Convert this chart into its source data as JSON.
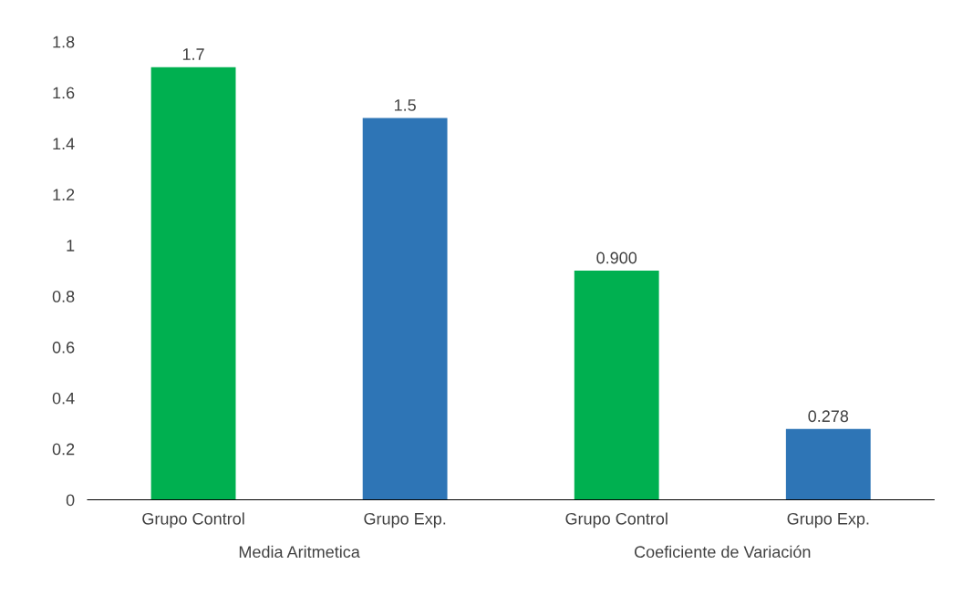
{
  "chart_data": {
    "type": "bar",
    "categories": [
      "Grupo Control",
      "Grupo Exp.",
      "Grupo Control",
      "Grupo Exp."
    ],
    "values": [
      1.7,
      1.5,
      0.9,
      0.278
    ],
    "colors": [
      "#00b050",
      "#2e75b6",
      "#00b050",
      "#2e75b6"
    ],
    "value_labels": [
      "1.7",
      "1.5",
      "0.900",
      "0.278"
    ],
    "annotations": [
      "Media Aritmetica",
      "Coeficiente de Variación"
    ],
    "ylim": [
      0,
      1.8
    ],
    "yticks": [
      0,
      0.2,
      0.4,
      0.6,
      0.8,
      1,
      1.2,
      1.4,
      1.6,
      1.8
    ],
    "grid": false
  }
}
